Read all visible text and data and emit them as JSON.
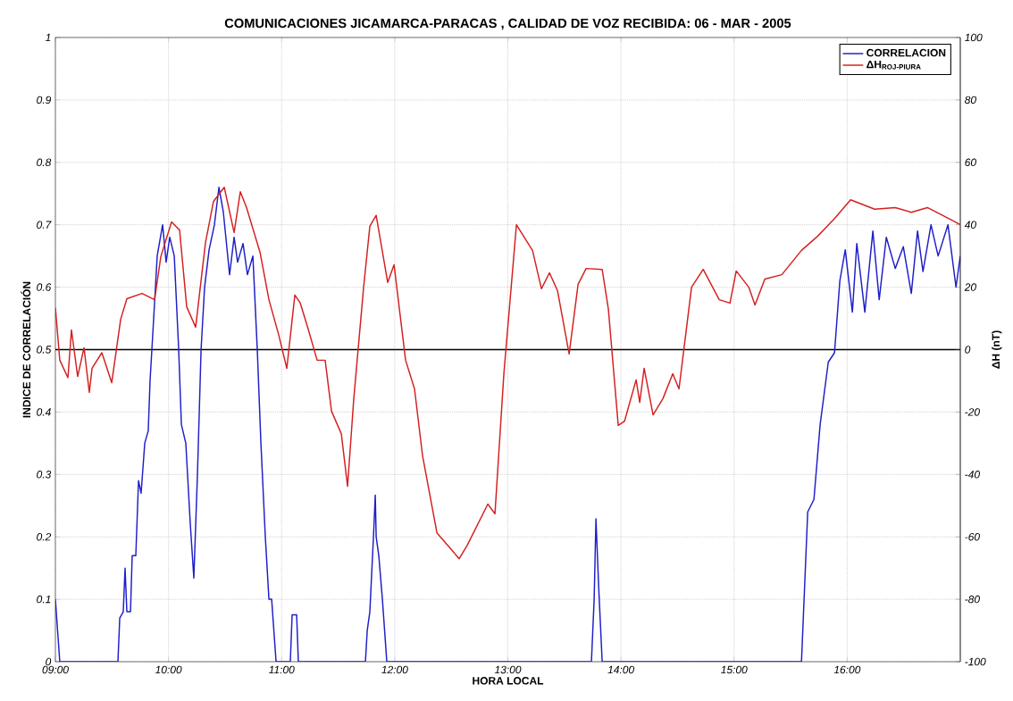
{
  "chart_data": {
    "type": "line",
    "title": "COMUNICACIONES JICAMARCA-PARACAS , CALIDAD DE VOZ RECIBIDA: 06 - MAR - 2005",
    "xlabel": "HORA LOCAL",
    "ylabel": "INDICE DE CORRELACIÓN",
    "y2label": "ΔH (nT)",
    "xlim": [
      9,
      17
    ],
    "xticks": [
      {
        "value": 9,
        "label": "09:00"
      },
      {
        "value": 10,
        "label": "10:00"
      },
      {
        "value": 11,
        "label": "11:00"
      },
      {
        "value": 12,
        "label": "12:00"
      },
      {
        "value": 13,
        "label": "13:00"
      },
      {
        "value": 14,
        "label": "14:00"
      },
      {
        "value": 15,
        "label": "15:00"
      },
      {
        "value": 16,
        "label": "16:00"
      }
    ],
    "ylim": [
      0,
      1
    ],
    "yticks": [
      0,
      0.1,
      0.2,
      0.3,
      0.4,
      0.5,
      0.6,
      0.7,
      0.8,
      0.9,
      1
    ],
    "y2lim": [
      -100,
      100
    ],
    "y2ticks": [
      -100,
      -80,
      -60,
      -40,
      -20,
      0,
      20,
      40,
      60,
      80,
      100
    ],
    "grid": true,
    "legend": "top right",
    "marker": "none",
    "line_style": "solid",
    "ref_lines": [
      {
        "axis": "y",
        "value": 0.5,
        "color": "#000000"
      }
    ],
    "series": [
      {
        "name": "CORRELACION",
        "color": "#1f1fc8",
        "axis": "y",
        "x": [
          9.0,
          9.039,
          9.553,
          9.569,
          9.6,
          9.616,
          9.632,
          9.664,
          9.679,
          9.711,
          9.735,
          9.758,
          9.79,
          9.821,
          9.837,
          9.869,
          9.9,
          9.948,
          9.979,
          10.011,
          10.051,
          10.09,
          10.114,
          10.153,
          10.193,
          10.224,
          10.256,
          10.288,
          10.319,
          10.359,
          10.406,
          10.446,
          10.485,
          10.54,
          10.58,
          10.611,
          10.659,
          10.698,
          10.746,
          10.785,
          10.817,
          10.856,
          10.888,
          10.912,
          10.951,
          11.077,
          11.093,
          11.133,
          11.148,
          11.741,
          11.757,
          11.78,
          11.812,
          11.828,
          11.836,
          11.859,
          11.891,
          11.93,
          13.739,
          13.763,
          13.779,
          13.803,
          13.834,
          15.596,
          15.651,
          15.706,
          15.761,
          15.833,
          15.888,
          15.935,
          15.983,
          16.046,
          16.085,
          16.156,
          16.227,
          16.283,
          16.346,
          16.425,
          16.496,
          16.567,
          16.622,
          16.67,
          16.741,
          16.804,
          16.891,
          16.962,
          17.0
        ],
        "values": [
          0.1,
          0,
          0,
          0.07,
          0.08,
          0.15,
          0.08,
          0.08,
          0.17,
          0.17,
          0.29,
          0.27,
          0.35,
          0.37,
          0.45,
          0.55,
          0.65,
          0.7,
          0.64,
          0.68,
          0.65,
          0.5,
          0.38,
          0.35,
          0.22,
          0.134,
          0.3,
          0.5,
          0.6,
          0.66,
          0.7,
          0.76,
          0.72,
          0.62,
          0.68,
          0.64,
          0.67,
          0.62,
          0.65,
          0.5,
          0.35,
          0.2,
          0.1,
          0.1,
          0,
          0,
          0.075,
          0.075,
          0,
          0,
          0.05,
          0.08,
          0.2,
          0.267,
          0.2,
          0.17,
          0.1,
          0,
          0,
          0.1,
          0.229,
          0.12,
          0,
          0,
          0.24,
          0.26,
          0.38,
          0.48,
          0.495,
          0.61,
          0.66,
          0.56,
          0.67,
          0.56,
          0.69,
          0.58,
          0.68,
          0.63,
          0.665,
          0.59,
          0.69,
          0.625,
          0.7,
          0.65,
          0.7,
          0.6,
          0.65
        ]
      },
      {
        "name": "ΔH$_{ROJ-PIURA}$",
        "color": "#d42020",
        "axis": "y2",
        "x": [
          9.0,
          9.039,
          9.111,
          9.142,
          9.197,
          9.253,
          9.3,
          9.324,
          9.411,
          9.498,
          9.537,
          9.577,
          9.632,
          9.766,
          9.877,
          9.932,
          10.027,
          10.098,
          10.161,
          10.24,
          10.327,
          10.398,
          10.493,
          10.58,
          10.635,
          10.69,
          10.809,
          10.888,
          10.975,
          11.046,
          11.117,
          11.164,
          11.235,
          11.314,
          11.385,
          11.441,
          11.528,
          11.583,
          11.638,
          11.725,
          11.78,
          11.836,
          11.938,
          11.994,
          12.096,
          12.175,
          12.246,
          12.373,
          12.57,
          12.641,
          12.823,
          12.886,
          12.965,
          13.076,
          13.218,
          13.297,
          13.368,
          13.439,
          13.542,
          13.621,
          13.692,
          13.834,
          13.889,
          13.976,
          14.032,
          14.134,
          14.166,
          14.205,
          14.284,
          14.371,
          14.458,
          14.513,
          14.624,
          14.727,
          14.869,
          14.964,
          15.019,
          15.13,
          15.185,
          15.272,
          15.422,
          15.596,
          15.738,
          15.888,
          16.03,
          16.243,
          16.425,
          16.567,
          16.709,
          16.923,
          17.0
        ],
        "values": [
          13.4,
          -3.4,
          -9,
          6.3,
          -8.6,
          0.6,
          -13.7,
          -6,
          -1,
          -10.6,
          -0.6,
          9.7,
          16.3,
          18,
          16,
          29.8,
          40.9,
          38.3,
          13.7,
          7.2,
          34.3,
          47.5,
          52,
          37.5,
          50.6,
          45.5,
          31.2,
          16,
          4.6,
          -6,
          17.5,
          15,
          6.6,
          -3.4,
          -3.4,
          -19.7,
          -27,
          -43.8,
          -15.7,
          20,
          39.5,
          43,
          21.5,
          27.2,
          -3.4,
          -12.6,
          -34,
          -58.7,
          -67,
          -62.7,
          -49.5,
          -52.6,
          -7.7,
          40,
          31.8,
          19.5,
          24.6,
          18.9,
          -1.4,
          20.9,
          26,
          25.7,
          12.9,
          -24.3,
          -22.9,
          -9.7,
          -16.9,
          -6,
          -20.9,
          -15.7,
          -7.7,
          -12.6,
          20,
          25.7,
          16,
          14.9,
          25.2,
          20,
          14.3,
          22.6,
          24,
          31.8,
          36.3,
          42,
          48,
          45,
          45.5,
          44,
          45.5,
          41.5,
          40
        ]
      }
    ]
  }
}
